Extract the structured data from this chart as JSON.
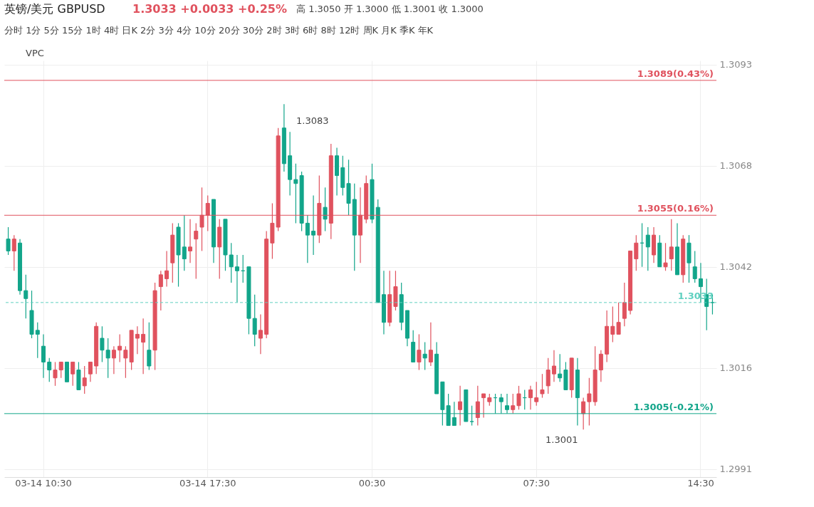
{
  "chart_data": {
    "type": "candlestick",
    "title": "英镑/美元 GBPUSD",
    "subtitle": "1.3033 +0.0033 +0.25%",
    "annotations": [
      "高 1.3050 开 1.3000 低 1.3001 收 1.3000",
      "分时 1分 5分 15分 1时 4时 日K 2分 3分 4分 10分 20分 30分 2时 3时 6时 8时 12时 周K 月K 季K 年K",
      "VPC",
      "1.3083",
      "1.3001"
    ],
    "categories": [
      null,
      null,
      null,
      null,
      null,
      null,
      "03-14 10:30",
      null,
      null,
      null,
      null,
      null,
      null,
      null,
      null,
      null,
      null,
      null,
      null,
      null,
      null,
      null,
      null,
      null,
      null,
      null,
      null,
      null,
      null,
      null,
      null,
      null,
      null,
      null,
      "03-14 17:30",
      null,
      null,
      null,
      null,
      null,
      null,
      null,
      null,
      null,
      null,
      null,
      null,
      null,
      null,
      null,
      null,
      null,
      null,
      null,
      null,
      null,
      null,
      null,
      null,
      null,
      null,
      null,
      "00:30",
      null,
      null,
      null,
      null,
      null,
      null,
      null,
      null,
      null,
      null,
      null,
      null,
      null,
      null,
      null,
      null,
      null,
      null,
      null,
      null,
      null,
      null,
      null,
      null,
      null,
      null,
      null,
      "07:30",
      null,
      null,
      null,
      null,
      null,
      null,
      null,
      null,
      null,
      null,
      null,
      null,
      null,
      null,
      null,
      null,
      null,
      null,
      null,
      null,
      null,
      null,
      null,
      null,
      null,
      null,
      null,
      "14:30",
      null,
      null
    ],
    "ohlc": [
      [
        1.3049,
        1.3052,
        1.3045,
        1.3046
      ],
      [
        1.3046,
        1.305,
        1.3041,
        1.3049
      ],
      [
        1.3048,
        1.3049,
        1.3035,
        1.3036
      ],
      [
        1.3036,
        1.304,
        1.3029,
        1.3034
      ],
      [
        1.3031,
        1.3036,
        1.3024,
        1.3025
      ],
      [
        1.3026,
        1.3028,
        1.3019,
        1.3025
      ],
      [
        1.3022,
        1.3025,
        1.3014,
        1.3018
      ],
      [
        1.3018,
        1.3019,
        1.3013,
        1.3016
      ],
      [
        1.3014,
        1.3018,
        1.3012,
        1.3016
      ],
      [
        1.3016,
        1.3018,
        1.3014,
        1.3018
      ],
      [
        1.3018,
        1.3018,
        1.3013,
        1.3013
      ],
      [
        1.3015,
        1.3018,
        1.3012,
        1.3018
      ],
      [
        1.3016,
        1.3018,
        1.3011,
        1.3011
      ],
      [
        1.3012,
        1.3017,
        1.301,
        1.3014
      ],
      [
        1.3015,
        1.3018,
        1.3013,
        1.3018
      ],
      [
        1.3017,
        1.3028,
        1.3015,
        1.3027
      ],
      [
        1.3024,
        1.3027,
        1.3018,
        1.3021
      ],
      [
        1.3021,
        1.3024,
        1.3014,
        1.3019
      ],
      [
        1.3019,
        1.3022,
        1.3015,
        1.3021
      ],
      [
        1.3021,
        1.3025,
        1.3018,
        1.3022
      ],
      [
        1.3019,
        1.3022,
        1.3014,
        1.3021
      ],
      [
        1.3018,
        1.3026,
        1.3016,
        1.3026
      ],
      [
        1.3024,
        1.3027,
        1.302,
        1.3025
      ],
      [
        1.3023,
        1.3029,
        1.3015,
        1.3025
      ],
      [
        1.3021,
        1.3028,
        1.3016,
        1.3017
      ],
      [
        1.3021,
        1.3038,
        1.3016,
        1.3036
      ],
      [
        1.3037,
        1.3041,
        1.3031,
        1.304
      ],
      [
        1.3039,
        1.3046,
        1.3037,
        1.3041
      ],
      [
        1.3043,
        1.3053,
        1.3038,
        1.305
      ],
      [
        1.3052,
        1.3053,
        1.3037,
        1.3045
      ],
      [
        1.3047,
        1.3055,
        1.3041,
        1.3044
      ],
      [
        1.3046,
        1.3054,
        1.3043,
        1.3047
      ],
      [
        1.3049,
        1.3053,
        1.3039,
        1.3051
      ],
      [
        1.3052,
        1.3062,
        1.3046,
        1.3055
      ],
      [
        1.3055,
        1.306,
        1.3051,
        1.3058
      ],
      [
        1.3059,
        1.3059,
        1.3043,
        1.3047
      ],
      [
        1.3047,
        1.3054,
        1.3039,
        1.3052
      ],
      [
        1.3054,
        1.3054,
        1.3041,
        1.3045
      ],
      [
        1.3045,
        1.3048,
        1.3038,
        1.3042
      ],
      [
        1.3042,
        1.3045,
        1.3033,
        1.3041
      ],
      [
        1.3041,
        1.3045,
        1.3038,
        1.3041
      ],
      [
        1.3042,
        1.3042,
        1.3025,
        1.3029
      ],
      [
        1.3029,
        1.3035,
        1.3022,
        1.3025
      ],
      [
        1.3024,
        1.303,
        1.302,
        1.3026
      ],
      [
        1.3025,
        1.3051,
        1.3024,
        1.3049
      ],
      [
        1.3048,
        1.3058,
        1.3044,
        1.3053
      ],
      [
        1.3052,
        1.3077,
        1.3051,
        1.3075
      ],
      [
        1.3077,
        1.3083,
        1.3066,
        1.3068
      ],
      [
        1.307,
        1.3076,
        1.306,
        1.3064
      ],
      [
        1.3064,
        1.3068,
        1.3053,
        1.3063
      ],
      [
        1.3065,
        1.3066,
        1.3051,
        1.3053
      ],
      [
        1.3053,
        1.3055,
        1.3043,
        1.305
      ],
      [
        1.3051,
        1.306,
        1.3045,
        1.305
      ],
      [
        1.305,
        1.3065,
        1.3048,
        1.3058
      ],
      [
        1.3057,
        1.3062,
        1.3051,
        1.3054
      ],
      [
        1.3053,
        1.3073,
        1.3049,
        1.307
      ],
      [
        1.307,
        1.3072,
        1.306,
        1.3065
      ],
      [
        1.3067,
        1.307,
        1.306,
        1.3062
      ],
      [
        1.3063,
        1.3069,
        1.3055,
        1.3058
      ],
      [
        1.3059,
        1.3063,
        1.3041,
        1.305
      ],
      [
        1.305,
        1.3062,
        1.3043,
        1.3055
      ],
      [
        1.3054,
        1.3065,
        1.3053,
        1.3063
      ],
      [
        1.3064,
        1.3068,
        1.3053,
        1.3054
      ],
      [
        1.3057,
        1.3059,
        1.3033,
        1.3033
      ],
      [
        1.3035,
        1.3041,
        1.3025,
        1.3028
      ],
      [
        1.3028,
        1.3041,
        1.3027,
        1.3035
      ],
      [
        1.3032,
        1.3041,
        1.3031,
        1.3037
      ],
      [
        1.3035,
        1.3038,
        1.3026,
        1.3028
      ],
      [
        1.3031,
        1.3031,
        1.3022,
        1.3024
      ],
      [
        1.3023,
        1.3026,
        1.3018,
        1.3018
      ],
      [
        1.3018,
        1.3025,
        1.3016,
        1.3021
      ],
      [
        1.302,
        1.3023,
        1.3016,
        1.3019
      ],
      [
        1.3018,
        1.3028,
        1.3017,
        1.3021
      ],
      [
        1.302,
        1.3023,
        1.301,
        1.301
      ],
      [
        1.3013,
        1.3013,
        1.3002,
        1.3006
      ],
      [
        1.3007,
        1.301,
        1.3002,
        1.3002
      ],
      [
        1.3004,
        1.3008,
        1.3002,
        1.3002
      ],
      [
        1.3006,
        1.3012,
        1.3002,
        1.3008
      ],
      [
        1.3011,
        1.3011,
        1.3003,
        1.3003
      ],
      [
        1.3003,
        1.3007,
        1.3002,
        1.3003
      ],
      [
        1.3004,
        1.3012,
        1.3002,
        1.3008
      ],
      [
        1.3009,
        1.301,
        1.3004,
        1.301
      ],
      [
        1.3008,
        1.301,
        1.3007,
        1.3009
      ],
      [
        1.3009,
        1.301,
        1.3005,
        1.3009
      ],
      [
        1.3009,
        1.301,
        1.3005,
        1.3008
      ],
      [
        1.3007,
        1.301,
        1.3005,
        1.3006
      ],
      [
        1.3006,
        1.301,
        1.3005,
        1.3007
      ],
      [
        1.3007,
        1.3012,
        1.3006,
        1.301
      ],
      [
        1.3009,
        1.3011,
        1.3006,
        1.3009
      ],
      [
        1.3009,
        1.3012,
        1.3006,
        1.3011
      ],
      [
        1.3008,
        1.3013,
        1.3007,
        1.3009
      ],
      [
        1.301,
        1.3015,
        1.3009,
        1.3011
      ],
      [
        1.3012,
        1.3019,
        1.301,
        1.3016
      ],
      [
        1.3015,
        1.3021,
        1.3013,
        1.3017
      ],
      [
        1.3015,
        1.302,
        1.3013,
        1.3014
      ],
      [
        1.3016,
        1.3018,
        1.3011,
        1.3011
      ],
      [
        1.3011,
        1.3019,
        1.3009,
        1.3019
      ],
      [
        1.3016,
        1.3019,
        1.3002,
        1.3009
      ],
      [
        1.3005,
        1.3009,
        1.3001,
        1.3008
      ],
      [
        1.3008,
        1.3014,
        1.3002,
        1.301
      ],
      [
        1.3008,
        1.3022,
        1.3007,
        1.3016
      ],
      [
        1.3016,
        1.3021,
        1.3013,
        1.302
      ],
      [
        1.302,
        1.3031,
        1.3018,
        1.3027
      ],
      [
        1.3025,
        1.3032,
        1.3023,
        1.3027
      ],
      [
        1.3025,
        1.3033,
        1.3025,
        1.3028
      ],
      [
        1.3029,
        1.3038,
        1.3027,
        1.3033
      ],
      [
        1.3031,
        1.3046,
        1.303,
        1.3046
      ],
      [
        1.3044,
        1.305,
        1.3041,
        1.3048
      ],
      [
        1.3048,
        1.3053,
        1.3042,
        1.3048
      ],
      [
        1.305,
        1.3052,
        1.3041,
        1.3047
      ],
      [
        1.3045,
        1.3052,
        1.3043,
        1.305
      ],
      [
        1.3048,
        1.305,
        1.3042,
        1.3042
      ],
      [
        1.3042,
        1.3048,
        1.3041,
        1.3043
      ],
      [
        1.3044,
        1.3054,
        1.3041,
        1.3047
      ],
      [
        1.3047,
        1.3053,
        1.304,
        1.304
      ],
      [
        1.304,
        1.305,
        1.3038,
        1.3049
      ],
      [
        1.3048,
        1.305,
        1.3038,
        1.3043
      ],
      [
        1.3042,
        1.3046,
        1.3038,
        1.3039
      ],
      [
        1.3039,
        1.3043,
        1.3033,
        1.3037
      ],
      [
        1.3035,
        1.3039,
        1.3026,
        1.3032
      ],
      [
        1.3033,
        1.3035,
        1.303,
        1.3033
      ]
    ],
    "ylim": [
      1.2989,
      1.3094
    ],
    "yticks": [
      1.2991,
      {
        "value": 1.30165,
        "label": "1.3016"
      },
      1.3042,
      {
        "value": 1.30675,
        "label": "1.3068"
      },
      1.3093
    ],
    "ref_lines": [
      {
        "axis": "y",
        "value": 1.3089,
        "label": "1.3089(0.43%)",
        "color": "#e0525e",
        "line_style": "solid"
      },
      {
        "axis": "y",
        "value": 1.3055,
        "label": "1.3055(0.16%)",
        "color": "#e0525e",
        "line_style": "solid"
      },
      {
        "axis": "y",
        "value": 1.3005,
        "label": "1.3005(-0.21%)",
        "color": "#12a58a",
        "line_style": "solid"
      },
      {
        "axis": "y",
        "value": 1.3033,
        "label": "1.3033",
        "color": "#5fd0c0",
        "line_style": "dashed"
      }
    ],
    "grid": true
  }
}
